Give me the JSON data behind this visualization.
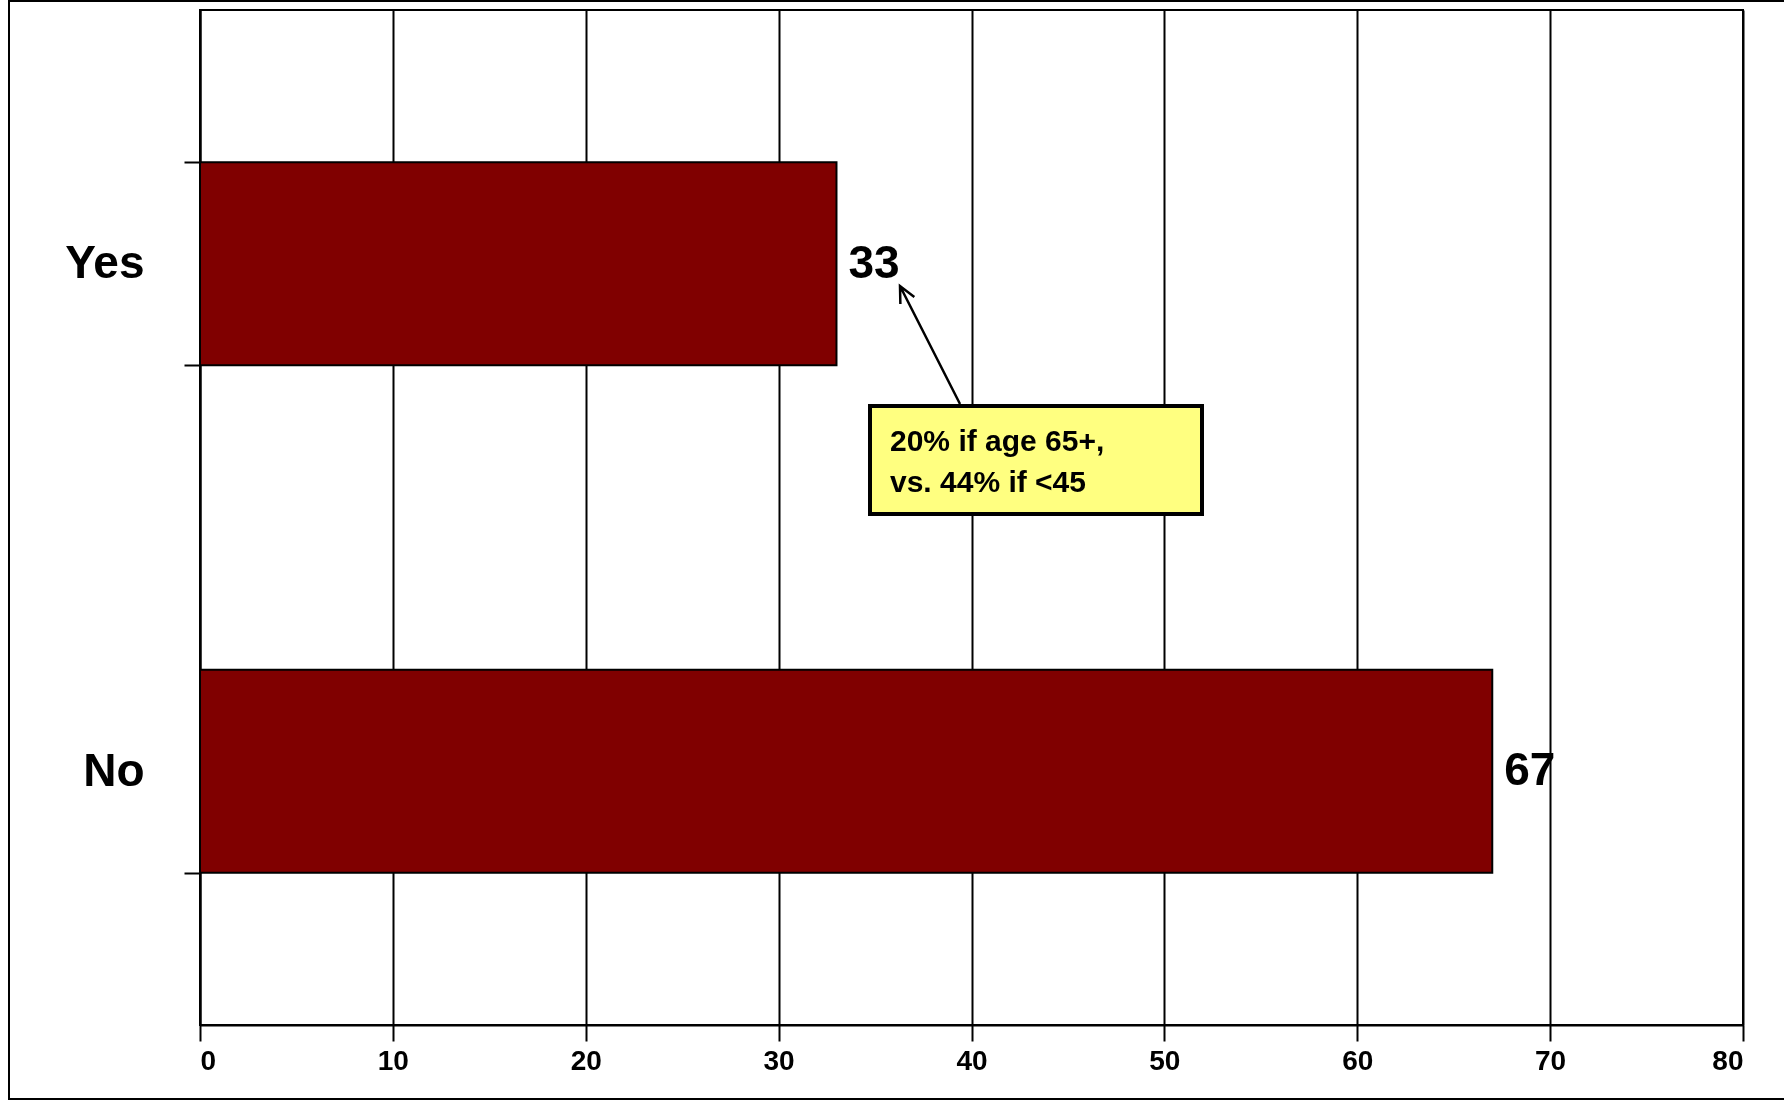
{
  "chart_data": {
    "type": "bar",
    "orientation": "horizontal",
    "categories": [
      "Yes",
      "No"
    ],
    "values": [
      33,
      67
    ],
    "color": "#800000",
    "xlim": [
      0,
      80
    ],
    "xticks": [
      0,
      10,
      20,
      30,
      40,
      50,
      60,
      70,
      80
    ],
    "grid": "x",
    "data_labels": true,
    "annotations": [
      "20% if age 65+, vs. 44% if <45"
    ]
  }
}
